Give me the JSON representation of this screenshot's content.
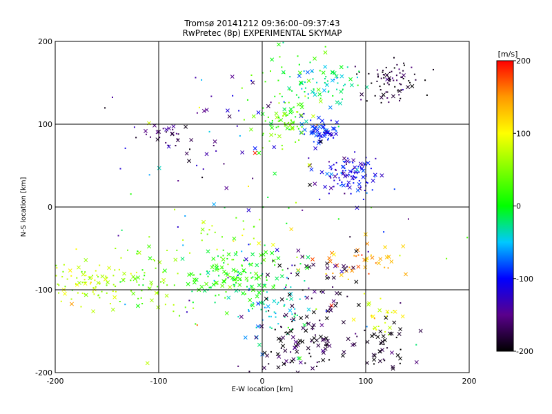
{
  "chart_data": {
    "type": "scatter",
    "title": "Tromsø 20141212 09:36:00–09:37:43",
    "subtitle": "RwPretec (8p) EXPERIMENTAL SKYMAP",
    "xlabel": "E-W location [km]",
    "ylabel": "N-S location [km]",
    "xlim": [
      -200,
      200
    ],
    "ylim": [
      -200,
      200
    ],
    "xticks": [
      "-200",
      "-100",
      "0",
      "100",
      "200"
    ],
    "yticks": [
      "-200",
      "-100",
      "0",
      "100",
      "200"
    ],
    "grid": true,
    "grid_lines": [
      -100,
      0,
      100
    ],
    "marker_types": [
      "x",
      "dot"
    ],
    "colorbar": {
      "label": "[m/s]",
      "range": [
        -200,
        200
      ],
      "ticks": [
        "200",
        "100",
        "0",
        "-100",
        "-200"
      ],
      "colormap": "rainbow-black",
      "stops": [
        {
          "v": -200,
          "color": "#000000"
        },
        {
          "v": -150,
          "color": "#5a008c"
        },
        {
          "v": -100,
          "color": "#0000ff"
        },
        {
          "v": -50,
          "color": "#00c8ff"
        },
        {
          "v": 0,
          "color": "#00ff00"
        },
        {
          "v": 100,
          "color": "#ffff00"
        },
        {
          "v": 150,
          "color": "#ff9900"
        },
        {
          "v": 200,
          "color": "#ff0000"
        }
      ]
    },
    "clusters": [
      {
        "cx": 125,
        "cy": 150,
        "sx": 14,
        "sy": 16,
        "v": -185,
        "n": 80,
        "xr": 0.1
      },
      {
        "cx": 55,
        "cy": 90,
        "sx": 9,
        "sy": 9,
        "v": -95,
        "n": 60,
        "xr": 0.6
      },
      {
        "cx": 85,
        "cy": 40,
        "sx": 14,
        "sy": 12,
        "v": -110,
        "n": 110,
        "xr": 0.35
      },
      {
        "cx": 60,
        "cy": 150,
        "sx": 20,
        "sy": 12,
        "v": -30,
        "n": 60,
        "xr": 0.35
      },
      {
        "cx": 20,
        "cy": 105,
        "sx": 13,
        "sy": 16,
        "v": 30,
        "n": 70,
        "xr": 0.4
      },
      {
        "cx": 30,
        "cy": 160,
        "sx": 30,
        "sy": 22,
        "v": 10,
        "n": 35,
        "xr": 0.3
      },
      {
        "cx": -90,
        "cy": 85,
        "sx": 16,
        "sy": 14,
        "v": -165,
        "n": 30,
        "xr": 0.6
      },
      {
        "cx": -30,
        "cy": 85,
        "sx": 40,
        "sy": 40,
        "v": -140,
        "n": 35,
        "xr": 0.5
      },
      {
        "cx": -30,
        "cy": -80,
        "sx": 22,
        "sy": 16,
        "v": 10,
        "n": 140,
        "xr": 0.5
      },
      {
        "cx": -170,
        "cy": -90,
        "sx": 20,
        "sy": 14,
        "v": 75,
        "n": 90,
        "xr": 0.3
      },
      {
        "cx": -110,
        "cy": -90,
        "sx": 20,
        "sy": 22,
        "v": 40,
        "n": 60,
        "xr": 0.35
      },
      {
        "cx": -50,
        "cy": -30,
        "sx": 30,
        "sy": 18,
        "v": 60,
        "n": 30,
        "xr": 0.3
      },
      {
        "cx": 10,
        "cy": -120,
        "sx": 20,
        "sy": 25,
        "v": -40,
        "n": 70,
        "xr": 0.3
      },
      {
        "cx": 50,
        "cy": -140,
        "sx": 25,
        "sy": 25,
        "v": -190,
        "n": 80,
        "xr": 0.7
      },
      {
        "cx": 30,
        "cy": -180,
        "sx": 25,
        "sy": 14,
        "v": -190,
        "n": 50,
        "xr": 0.7
      },
      {
        "cx": 120,
        "cy": -170,
        "sx": 10,
        "sy": 16,
        "v": -195,
        "n": 40,
        "xr": 0.75
      },
      {
        "cx": 115,
        "cy": -130,
        "sx": 10,
        "sy": 12,
        "v": 95,
        "n": 25,
        "xr": 0.4
      },
      {
        "cx": 95,
        "cy": -65,
        "sx": 22,
        "sy": 10,
        "v": 145,
        "n": 40,
        "xr": 0.7
      },
      {
        "cx": 55,
        "cy": -75,
        "sx": 25,
        "sy": 18,
        "v": -180,
        "n": 35,
        "xr": 0.5
      },
      {
        "cx": 0,
        "cy": 0,
        "sx": 95,
        "sy": 95,
        "v": -20,
        "n": 90,
        "xr": 0.4,
        "vs": 130
      }
    ]
  }
}
